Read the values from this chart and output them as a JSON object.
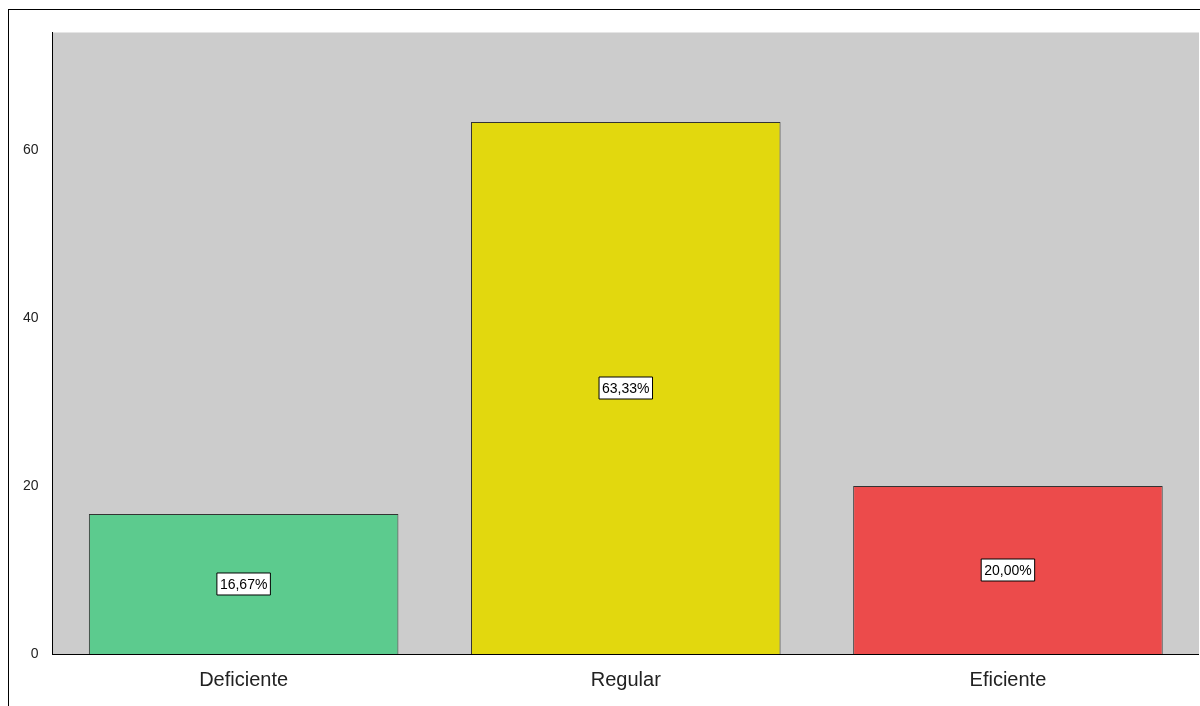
{
  "chart_data": {
    "type": "bar",
    "categories": [
      "Deficiente",
      "Regular",
      "Eficiente"
    ],
    "values": [
      16.67,
      63.33,
      20.0
    ],
    "colors": [
      "#5ccb8e",
      "#e2d80e",
      "#ec4b4b"
    ],
    "value_labels": [
      "16,67%",
      "63,33%",
      "20,00%"
    ],
    "ylim": [
      0,
      74
    ],
    "yticks": [
      0,
      20,
      40,
      60
    ],
    "grid": false,
    "legend": false
  }
}
